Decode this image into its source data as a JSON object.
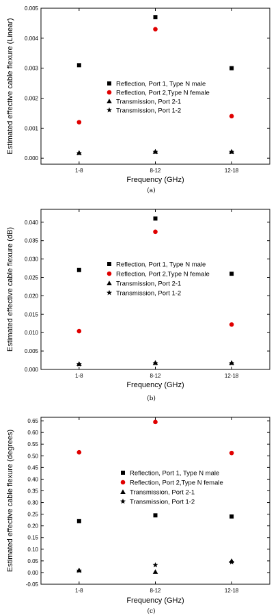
{
  "chart_data": [
    {
      "type": "scatter",
      "panel_label": "(a)",
      "xlabel": "Frequency (GHz)",
      "ylabel": "Estimated effective cable flexure (Linear)",
      "categories": [
        "1-8",
        "8-12",
        "12-18"
      ],
      "ylim": [
        -0.0002,
        0.005
      ],
      "yticks": [
        0.0,
        0.001,
        0.002,
        0.003,
        0.004,
        0.005
      ],
      "ytick_labels": [
        "0.000",
        "0.001",
        "0.002",
        "0.003",
        "0.004",
        "0.005"
      ],
      "legend_position": "right",
      "series": [
        {
          "name": "Reflection, Port 1, Type N male",
          "marker": "square",
          "color": "#000000",
          "values": [
            0.0031,
            0.0047,
            0.003
          ]
        },
        {
          "name": "Reflection, Port 2,Type N female",
          "marker": "circle",
          "color": "#e00000",
          "values": [
            0.0012,
            0.0043,
            0.0014
          ]
        },
        {
          "name": "Transmission, Port 2-1",
          "marker": "triangle",
          "color": "#000000",
          "values": [
            0.00018,
            0.00022,
            0.00022
          ]
        },
        {
          "name": "Transmission, Port 1-2",
          "marker": "star",
          "color": "#000000",
          "values": [
            0.00017,
            0.00021,
            0.00021
          ]
        }
      ]
    },
    {
      "type": "scatter",
      "panel_label": "(b)",
      "xlabel": "Frequency (GHz)",
      "ylabel": "Estimated effective cable flexure (dB)",
      "categories": [
        "1-8",
        "8-12",
        "12-18"
      ],
      "ylim": [
        0,
        0.0435
      ],
      "yticks": [
        0.0,
        0.005,
        0.01,
        0.015,
        0.02,
        0.025,
        0.03,
        0.035,
        0.04
      ],
      "ytick_labels": [
        "0.000",
        "0.005",
        "0.010",
        "0.015",
        "0.020",
        "0.025",
        "0.030",
        "0.035",
        "0.040"
      ],
      "legend_position": "right",
      "series": [
        {
          "name": "Reflection, Port 1, Type N male",
          "marker": "square",
          "color": "#000000",
          "values": [
            0.027,
            0.041,
            0.026
          ]
        },
        {
          "name": "Reflection, Port 2,Type N female",
          "marker": "circle",
          "color": "#e00000",
          "values": [
            0.0104,
            0.0374,
            0.0122
          ]
        },
        {
          "name": "Transmission, Port 2-1",
          "marker": "triangle",
          "color": "#000000",
          "values": [
            0.0015,
            0.0018,
            0.0018
          ]
        },
        {
          "name": "Transmission, Port 1-2",
          "marker": "star",
          "color": "#000000",
          "values": [
            0.0014,
            0.0017,
            0.0017
          ]
        }
      ]
    },
    {
      "type": "scatter",
      "panel_label": "(c)",
      "xlabel": "Frequency (GHz)",
      "ylabel": "Estimated effective cable flexure (degrees)",
      "categories": [
        "1-8",
        "8-12",
        "12-18"
      ],
      "ylim": [
        -0.05,
        0.665
      ],
      "yticks": [
        -0.05,
        0.0,
        0.05,
        0.1,
        0.15,
        0.2,
        0.25,
        0.3,
        0.35,
        0.4,
        0.45,
        0.5,
        0.55,
        0.6,
        0.65
      ],
      "ytick_labels": [
        "-0.05",
        "0.00",
        "0.05",
        "0.10",
        "0.15",
        "0.20",
        "0.25",
        "0.30",
        "0.35",
        "0.40",
        "0.45",
        "0.50",
        "0.55",
        "0.60",
        "0.65"
      ],
      "legend_position": "right",
      "series": [
        {
          "name": "Reflection, Port 1, Type N male",
          "marker": "square",
          "color": "#000000",
          "values": [
            0.22,
            0.245,
            0.24
          ]
        },
        {
          "name": "Reflection, Port 2,Type N female",
          "marker": "circle",
          "color": "#e00000",
          "values": [
            0.515,
            0.645,
            0.512
          ]
        },
        {
          "name": "Transmission, Port 2-1",
          "marker": "triangle",
          "color": "#000000",
          "values": [
            0.01,
            0.003,
            0.05
          ]
        },
        {
          "name": "Transmission, Port 1-2",
          "marker": "star",
          "color": "#000000",
          "values": [
            0.008,
            0.032,
            0.045
          ]
        }
      ]
    }
  ]
}
